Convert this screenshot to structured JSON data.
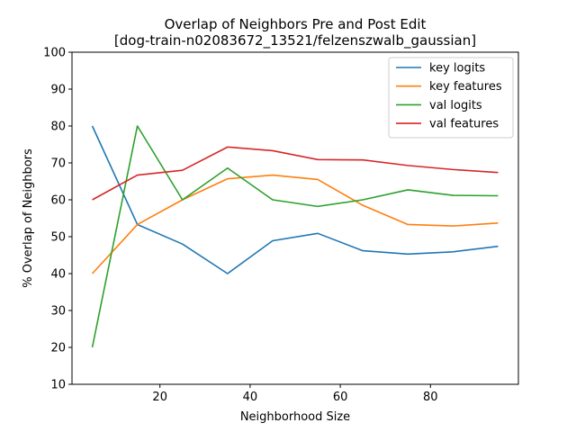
{
  "chart_data": {
    "type": "line",
    "title": "Overlap of Neighbors Pre and Post Edit",
    "subtitle": "[dog-train-n02083672_13521/felzenszwalb_gaussian]",
    "xlabel": "Neighborhood Size",
    "ylabel": "% Overlap of Neighbors",
    "xlim": [
      0.5,
      99.5
    ],
    "ylim": [
      10,
      100
    ],
    "xticks": [
      20,
      40,
      60,
      80
    ],
    "yticks": [
      10,
      20,
      30,
      40,
      50,
      60,
      70,
      80,
      90,
      100
    ],
    "x": [
      5,
      15,
      25,
      35,
      45,
      55,
      65,
      75,
      85,
      95
    ],
    "legend_position": "top-right",
    "grid": false,
    "series": [
      {
        "name": "key logits",
        "color": "#1f77b4",
        "values": [
          80,
          53.3,
          48,
          40,
          48.9,
          50.9,
          46.2,
          45.3,
          45.9,
          47.4
        ]
      },
      {
        "name": "key features",
        "color": "#ff7f0e",
        "values": [
          40,
          53.3,
          60,
          65.7,
          66.7,
          65.5,
          58.5,
          53.3,
          52.9,
          53.7
        ]
      },
      {
        "name": "val logits",
        "color": "#2ca02c",
        "values": [
          20,
          80,
          60,
          68.6,
          60,
          58.2,
          60,
          62.7,
          61.2,
          61.1
        ]
      },
      {
        "name": "val features",
        "color": "#d62728",
        "values": [
          60,
          66.7,
          68,
          74.3,
          73.3,
          70.9,
          70.8,
          69.3,
          68.2,
          67.4
        ]
      }
    ]
  }
}
